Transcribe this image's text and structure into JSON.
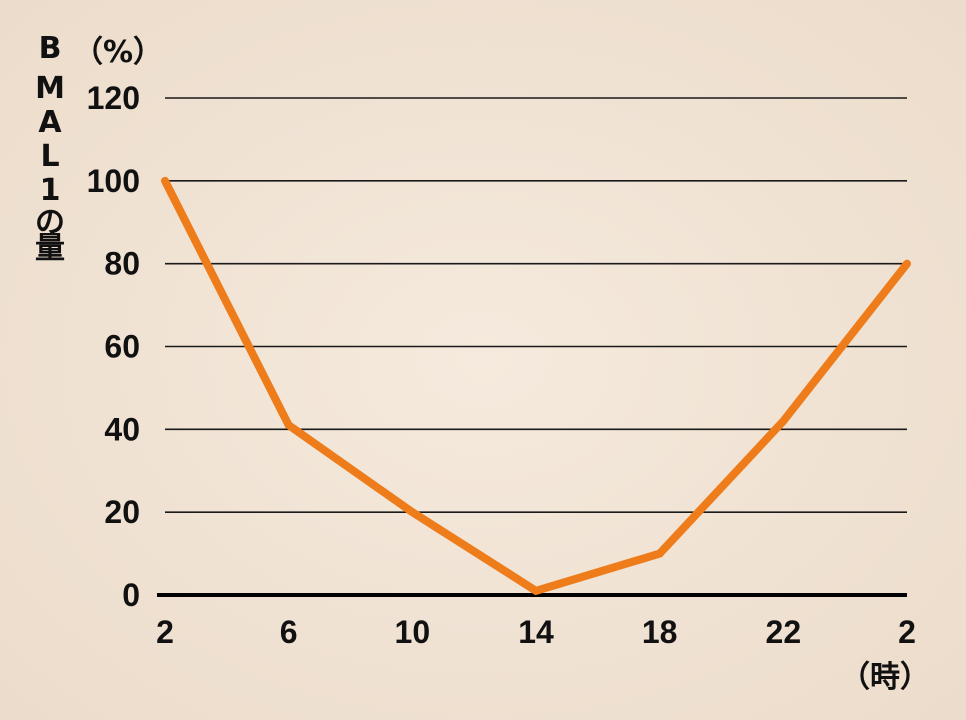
{
  "chart_data": {
    "type": "line",
    "title": "",
    "ylabel_chars": [
      "B",
      "M",
      "A",
      "L",
      "1",
      "の",
      "量"
    ],
    "yunit": "（%）",
    "xunit": "（時）",
    "x_tick_labels": [
      "2",
      "6",
      "10",
      "14",
      "18",
      "22",
      "2"
    ],
    "y_ticks": [
      0,
      20,
      40,
      60,
      80,
      100,
      120
    ],
    "ylim": [
      0,
      120
    ],
    "grid": true,
    "series": [
      {
        "values": [
          100,
          41,
          20,
          1,
          10,
          42,
          80
        ],
        "color": "#ee7c1a"
      }
    ]
  }
}
